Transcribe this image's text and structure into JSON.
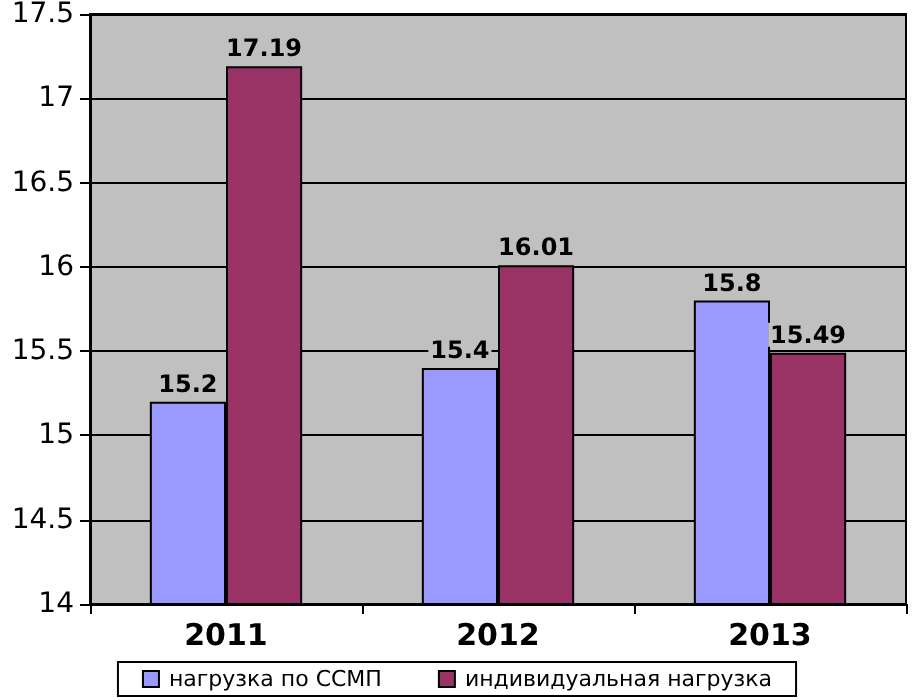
{
  "chart_data": {
    "type": "bar",
    "categories": [
      "2011",
      "2012",
      "2013"
    ],
    "series": [
      {
        "name": "нагрузка по ССМП",
        "color": "#9999ff",
        "values": [
          15.2,
          15.4,
          15.8
        ]
      },
      {
        "name": "индивидуальная нагрузка",
        "color": "#993366",
        "values": [
          17.19,
          16.01,
          15.49
        ]
      }
    ],
    "ylim": [
      14,
      17.5
    ],
    "yticks": [
      14,
      14.5,
      15,
      15.5,
      16,
      16.5,
      17,
      17.5
    ],
    "grid": "y",
    "legend": "bottom",
    "data_labels": true
  }
}
